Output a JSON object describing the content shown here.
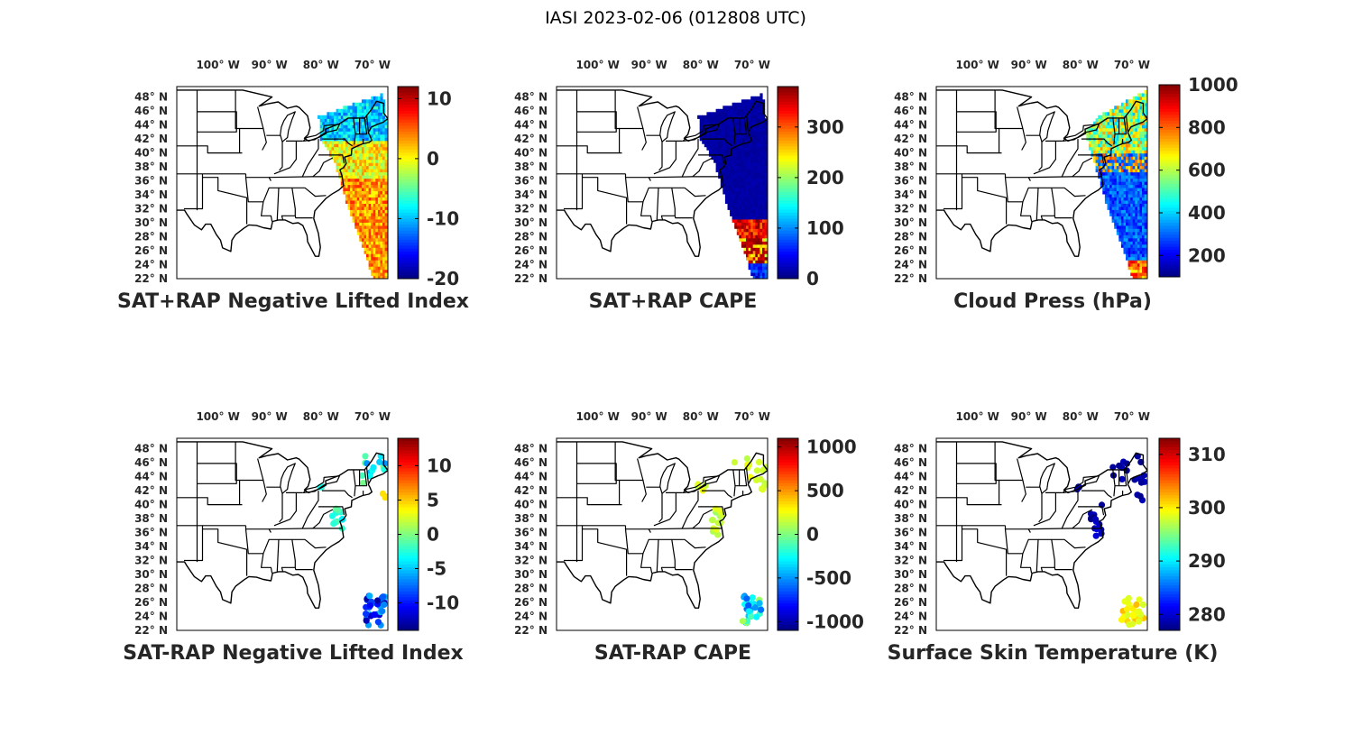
{
  "figure": {
    "title": "IASI 2023-02-06 (012808 UTC)"
  },
  "lon_ticks": [
    {
      "value": -100,
      "label": "100° W"
    },
    {
      "value": -90,
      "label": "90° W"
    },
    {
      "value": -80,
      "label": "80° W"
    },
    {
      "value": -70,
      "label": "70° W"
    }
  ],
  "lat_ticks": [
    {
      "value": 48,
      "label": "48° N"
    },
    {
      "value": 46,
      "label": "46° N"
    },
    {
      "value": 44,
      "label": "44° N"
    },
    {
      "value": 42,
      "label": "42° N"
    },
    {
      "value": 40,
      "label": "40° N"
    },
    {
      "value": 38,
      "label": "38° N"
    },
    {
      "value": 36,
      "label": "36° N"
    },
    {
      "value": 34,
      "label": "34° N"
    },
    {
      "value": 32,
      "label": "32° N"
    },
    {
      "value": 30,
      "label": "30° N"
    },
    {
      "value": 28,
      "label": "28° N"
    },
    {
      "value": 26,
      "label": "26° N"
    },
    {
      "value": 24,
      "label": "24° N"
    },
    {
      "value": 22,
      "label": "22° N"
    }
  ],
  "map_extent": {
    "lon": [
      -108,
      -67
    ],
    "lat": [
      22,
      49.5
    ]
  },
  "colormap": "jet",
  "chart_data": [
    {
      "type": "map-swath",
      "title": "SAT+RAP Negative Lifted Index",
      "clim": [
        -20,
        12
      ],
      "colorbar_ticks": [
        {
          "value": 10,
          "label": "10"
        },
        {
          "value": 0,
          "label": "0"
        },
        {
          "value": -10,
          "label": "-10"
        },
        {
          "value": -20,
          "label": "-20"
        }
      ]
    },
    {
      "type": "map-swath",
      "title": "SAT+RAP CAPE",
      "clim": [
        0,
        380
      ],
      "colorbar_ticks": [
        {
          "value": 300,
          "label": "300"
        },
        {
          "value": 200,
          "label": "200"
        },
        {
          "value": 100,
          "label": "100"
        },
        {
          "value": 0,
          "label": "0"
        }
      ]
    },
    {
      "type": "map-swath",
      "title": "Cloud Press (hPa)",
      "clim": [
        100,
        1000
      ],
      "colorbar_ticks": [
        {
          "value": 1000,
          "label": "1000"
        },
        {
          "value": 800,
          "label": "800"
        },
        {
          "value": 600,
          "label": "600"
        },
        {
          "value": 400,
          "label": "400"
        },
        {
          "value": 200,
          "label": "200"
        }
      ]
    },
    {
      "type": "map-scatter",
      "title": "SAT-RAP Negative Lifted Index",
      "clim": [
        -14,
        14
      ],
      "colorbar_ticks": [
        {
          "value": 10,
          "label": "10"
        },
        {
          "value": 5,
          "label": "5"
        },
        {
          "value": 0,
          "label": "0"
        },
        {
          "value": -5,
          "label": "-5"
        },
        {
          "value": -10,
          "label": "-10"
        }
      ]
    },
    {
      "type": "map-scatter",
      "title": "SAT-RAP CAPE",
      "clim": [
        -1100,
        1100
      ],
      "colorbar_ticks": [
        {
          "value": 1000,
          "label": "1000"
        },
        {
          "value": 500,
          "label": "500"
        },
        {
          "value": 0,
          "label": "0"
        },
        {
          "value": -500,
          "label": "-500"
        },
        {
          "value": -1000,
          "label": "-1000"
        }
      ]
    },
    {
      "type": "map-scatter",
      "title": "Surface Skin Temperature (K)",
      "clim": [
        277,
        313
      ],
      "colorbar_ticks": [
        {
          "value": 310,
          "label": "310"
        },
        {
          "value": 300,
          "label": "300"
        },
        {
          "value": 290,
          "label": "290"
        },
        {
          "value": 280,
          "label": "280"
        }
      ]
    }
  ]
}
